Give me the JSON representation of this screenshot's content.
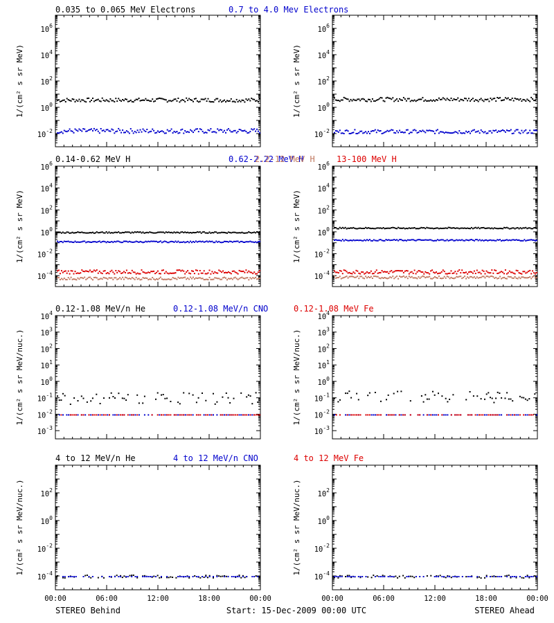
{
  "colors": {
    "black": "#000000",
    "blue": "#0000cc",
    "tan": "#c07860",
    "red": "#dd0000"
  },
  "footer": {
    "left": "STEREO Behind",
    "center": "Start: 15-Dec-2009 00:00 UTC",
    "right": "STEREO Ahead"
  },
  "x_ticks": [
    "00:00",
    "06:00",
    "12:00",
    "18:00",
    "00:00"
  ],
  "rows": [
    {
      "titles": [
        {
          "text": "0.035 to 0.065 MeV Electrons",
          "color": "black"
        },
        {
          "text": "0.7 to 4.0 Mev Electrons",
          "color": "blue"
        }
      ],
      "ylabel": "1/(cm² s sr MeV)",
      "ylim_log10": [
        -3,
        7
      ],
      "y_ticks": [
        -2,
        0,
        2,
        4,
        6
      ]
    },
    {
      "titles": [
        {
          "text": "0.14-0.62 MeV H",
          "color": "black"
        },
        {
          "text": "0.62-2.22 MeV H",
          "color": "blue"
        },
        {
          "text": "2.2-12 MeV H",
          "color": "tan"
        },
        {
          "text": "13-100 MeV H",
          "color": "red"
        }
      ],
      "ylabel": "1/(cm² s sr MeV)",
      "ylim_log10": [
        -5,
        6
      ],
      "y_ticks": [
        -4,
        -2,
        0,
        2,
        4,
        6
      ]
    },
    {
      "titles": [
        {
          "text": "0.12-1.08 MeV/n He",
          "color": "black"
        },
        {
          "text": "0.12-1.08 MeV/n CNO",
          "color": "blue"
        },
        {
          "text": "0.12-1.08 MeV Fe",
          "color": "red"
        }
      ],
      "ylabel": "1/(cm² s sr MeV/nuc.)",
      "ylim_log10": [
        -3.5,
        4
      ],
      "y_ticks": [
        -3,
        -2,
        -1,
        0,
        1,
        2,
        3,
        4
      ]
    },
    {
      "titles": [
        {
          "text": "4 to 12 MeV/n He",
          "color": "black"
        },
        {
          "text": "4 to 12 MeV/n CNO",
          "color": "blue"
        },
        {
          "text": "4 to 12 MeV Fe",
          "color": "red"
        }
      ],
      "ylabel": "1/(cm² s sr MeV/nuc.)",
      "ylim_log10": [
        -5,
        4
      ],
      "y_ticks": [
        -4,
        -2,
        0,
        2
      ]
    }
  ],
  "chart_data": [
    {
      "type": "scatter",
      "row": 1,
      "spacecraft": "STEREO Behind",
      "series": [
        {
          "name": "0.035 to 0.065 MeV Electrons",
          "color": "black",
          "level_log10": 0.6,
          "spread_log10": 0.15
        },
        {
          "name": "0.7 to 4.0 Mev Electrons",
          "color": "blue",
          "level_log10": -1.75,
          "spread_log10": 0.18
        }
      ]
    },
    {
      "type": "scatter",
      "row": 1,
      "spacecraft": "STEREO Ahead",
      "series": [
        {
          "name": "0.035 to 0.065 MeV Electrons",
          "color": "black",
          "level_log10": 0.65,
          "spread_log10": 0.15
        },
        {
          "name": "0.7 to 4.0 Mev Electrons",
          "color": "blue",
          "level_log10": -1.8,
          "spread_log10": 0.15
        }
      ]
    },
    {
      "type": "scatter",
      "row": 2,
      "spacecraft": "STEREO Behind",
      "series": [
        {
          "name": "0.14-0.62 MeV H",
          "color": "black",
          "level_log10": 0.0,
          "spread_log10": 0.06
        },
        {
          "name": "0.62-2.22 MeV H",
          "color": "blue",
          "level_log10": -0.85,
          "spread_log10": 0.06
        },
        {
          "name": "2.2-12 MeV H",
          "color": "tan",
          "level_log10": -4.2,
          "spread_log10": 0.12
        },
        {
          "name": "13-100 MeV H",
          "color": "red",
          "level_log10": -3.6,
          "spread_log10": 0.18
        }
      ]
    },
    {
      "type": "scatter",
      "row": 2,
      "spacecraft": "STEREO Ahead",
      "series": [
        {
          "name": "0.14-0.62 MeV H",
          "color": "black",
          "level_log10": 0.4,
          "spread_log10": 0.06
        },
        {
          "name": "0.62-2.22 MeV H",
          "color": "blue",
          "level_log10": -0.7,
          "spread_log10": 0.06
        },
        {
          "name": "2.2-12 MeV H",
          "color": "tan",
          "level_log10": -4.1,
          "spread_log10": 0.12
        },
        {
          "name": "13-100 MeV H",
          "color": "red",
          "level_log10": -3.6,
          "spread_log10": 0.18
        }
      ]
    },
    {
      "type": "scatter",
      "row": 3,
      "spacecraft": "STEREO Behind",
      "series": [
        {
          "name": "0.12-1.08 MeV/n He",
          "color": "black",
          "level_log10": -1.0,
          "spread_log10": 0.35
        },
        {
          "name": "0.12-1.08 MeV/n CNO",
          "color": "blue",
          "level_log10": -2.0,
          "spread_log10": 0.0
        },
        {
          "name": "0.12-1.08 MeV Fe",
          "color": "red",
          "level_log10": -2.0,
          "spread_log10": 0.0
        }
      ]
    },
    {
      "type": "scatter",
      "row": 3,
      "spacecraft": "STEREO Ahead",
      "series": [
        {
          "name": "0.12-1.08 MeV/n He",
          "color": "black",
          "level_log10": -0.9,
          "spread_log10": 0.35
        },
        {
          "name": "0.12-1.08 MeV/n CNO",
          "color": "blue",
          "level_log10": -2.0,
          "spread_log10": 0.0
        },
        {
          "name": "0.12-1.08 MeV Fe",
          "color": "red",
          "level_log10": -2.0,
          "spread_log10": 0.0
        }
      ]
    },
    {
      "type": "scatter",
      "row": 4,
      "spacecraft": "STEREO Behind",
      "series": [
        {
          "name": "4 to 12 MeV/n He",
          "color": "black",
          "level_log10": -4.0,
          "spread_log10": 0.1
        },
        {
          "name": "4 to 12 MeV/n CNO",
          "color": "blue",
          "level_log10": -4.0,
          "spread_log10": 0.0
        }
      ]
    },
    {
      "type": "scatter",
      "row": 4,
      "spacecraft": "STEREO Ahead",
      "series": [
        {
          "name": "4 to 12 MeV/n He",
          "color": "black",
          "level_log10": -4.0,
          "spread_log10": 0.1
        },
        {
          "name": "4 to 12 MeV/n CNO",
          "color": "blue",
          "level_log10": -4.0,
          "spread_log10": 0.0
        }
      ]
    }
  ]
}
